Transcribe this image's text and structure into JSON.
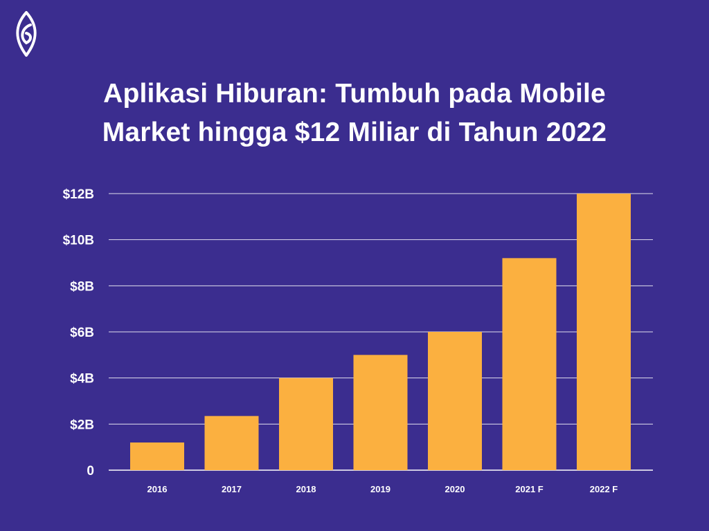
{
  "brand": {
    "logo_icon": "leaf-logo-icon"
  },
  "title": {
    "line1": "Aplikasi Hiburan: Tumbuh pada Mobile",
    "line2": "Market hingga $12 Miliar di Tahun 2022"
  },
  "colors": {
    "background": "#3b2d8f",
    "bar": "#fbb040",
    "grid": "#ffffff",
    "text": "#ffffff"
  },
  "chart_data": {
    "type": "bar",
    "title": "Aplikasi Hiburan: Tumbuh pada Mobile Market hingga $12 Miliar di Tahun 2022",
    "xlabel": "",
    "ylabel": "",
    "categories": [
      "2016",
      "2017",
      "2018",
      "2019",
      "2020",
      "2021 F",
      "2022 F"
    ],
    "values": [
      1.2,
      2.35,
      4.0,
      5.0,
      6.0,
      9.2,
      12.0
    ],
    "ylim": [
      0,
      12
    ],
    "yticks": [
      0,
      2,
      4,
      6,
      8,
      10,
      12
    ],
    "ytick_labels": [
      "0",
      "$2B",
      "$4B",
      "$6B",
      "$8B",
      "$10B",
      "$12B"
    ],
    "grid": true,
    "legend": "none"
  }
}
